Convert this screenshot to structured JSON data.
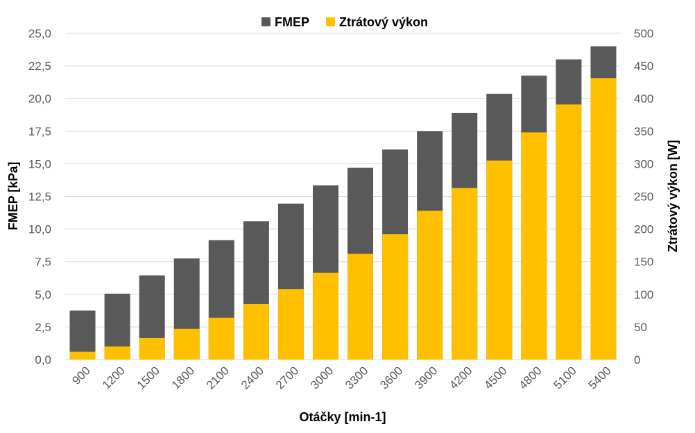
{
  "chart_data": {
    "type": "bar",
    "title": "",
    "categories": [
      "900",
      "1200",
      "1500",
      "1800",
      "2100",
      "2400",
      "2700",
      "3000",
      "3300",
      "3600",
      "3900",
      "4200",
      "4500",
      "4800",
      "5100",
      "5400"
    ],
    "series": [
      {
        "name": "FMEP",
        "axis": "left",
        "color": "#595959",
        "values": [
          3.75,
          5.05,
          6.45,
          7.75,
          9.15,
          10.6,
          11.95,
          13.35,
          14.7,
          16.1,
          17.5,
          18.9,
          20.35,
          21.75,
          23.0,
          24.0
        ]
      },
      {
        "name": "Ztrátový výkon",
        "axis": "right",
        "color": "#FFC000",
        "values": [
          12,
          20,
          33,
          47,
          64,
          85,
          108,
          133,
          162,
          192,
          228,
          263,
          305,
          348,
          391,
          431
        ]
      }
    ],
    "xlabel": "Otáčky [min-1]",
    "ylabel": "FMEP [kPa]",
    "ylabel_right": "Ztrátový výkon [W]",
    "ylim": [
      0,
      25
    ],
    "ylim_right": [
      0,
      500
    ],
    "yticks": [
      "0,0",
      "2,5",
      "5,0",
      "7,5",
      "10,0",
      "12,5",
      "15,0",
      "17,5",
      "20,0",
      "22,5",
      "25,0"
    ],
    "yticks_right": [
      "0",
      "50",
      "100",
      "150",
      "200",
      "250",
      "300",
      "350",
      "400",
      "450",
      "500"
    ],
    "grid": true,
    "legend": "top-center"
  }
}
